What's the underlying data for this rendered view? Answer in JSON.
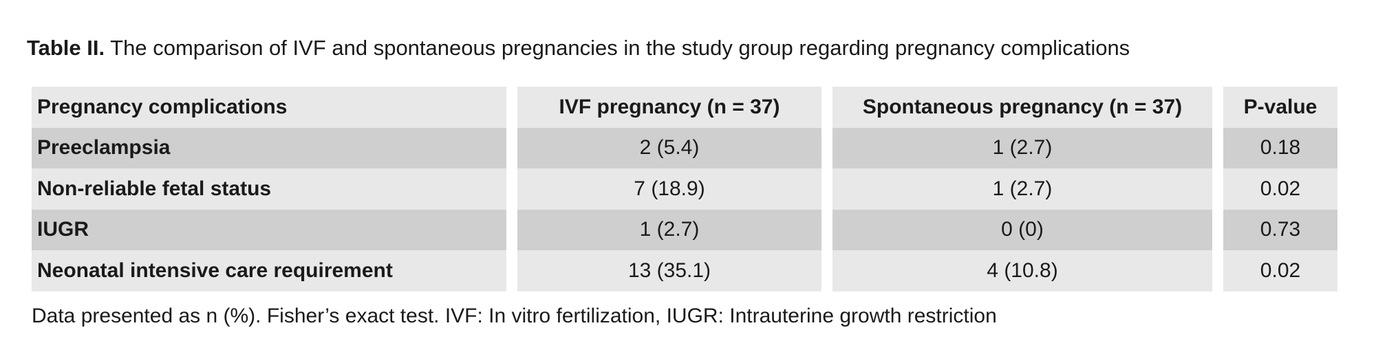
{
  "caption": {
    "label": "Table II.",
    "text": " The comparison of IVF and spontaneous pregnancies in the study group regarding pregnancy complications"
  },
  "table": {
    "headers": [
      "Pregnancy complications",
      "IVF pregnancy (n = 37)",
      "Spontaneous pregnancy (n = 37)",
      "P-value"
    ],
    "rows": [
      [
        "Preeclampsia",
        "2 (5.4)",
        "1 (2.7)",
        "0.18"
      ],
      [
        "Non-reliable fetal status",
        "7 (18.9)",
        "1 (2.7)",
        "0.02"
      ],
      [
        "IUGR",
        "1 (2.7)",
        "0 (0)",
        "0.73"
      ],
      [
        "Neonatal intensive care requirement",
        "13 (35.1)",
        "4 (10.8)",
        "0.02"
      ]
    ]
  },
  "footnote": "Data presented as n (%). Fisher’s exact test. IVF: In vitro fertilization, IUGR: Intrauterine growth restriction"
}
